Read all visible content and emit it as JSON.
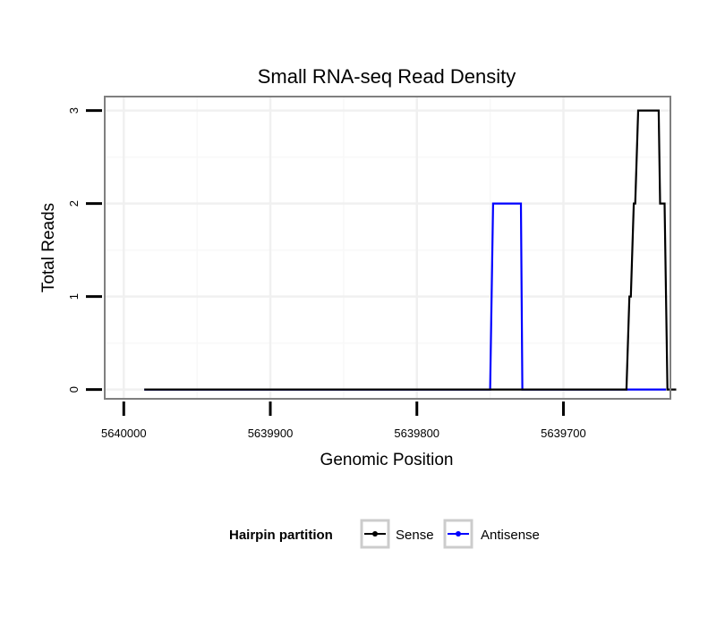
{
  "chart_data": {
    "type": "line",
    "title": "Small RNA-seq Read Density",
    "xlabel": "Genomic Position",
    "ylabel": "Total Reads",
    "x_reversed": true,
    "xlim": [
      5640013,
      5639627
    ],
    "ylim": [
      -0.1,
      3.15
    ],
    "x_ticks": [
      5640000,
      5639900,
      5639800,
      5639700
    ],
    "x_tick_labels": [
      "5640000",
      "5639900",
      "5639800",
      "5639700"
    ],
    "y_ticks": [
      0,
      1,
      2,
      3
    ],
    "y_tick_labels": [
      "0",
      "1",
      "2",
      "3"
    ],
    "grid": true,
    "legend": {
      "title": "Hairpin partition",
      "position": "bottom",
      "entries": [
        {
          "label": "Sense",
          "color": "#000000"
        },
        {
          "label": "Antisense",
          "color": "#0000ff"
        }
      ]
    },
    "series": [
      {
        "name": "Sense",
        "color": "#000000",
        "points": [
          [
            5639986,
            0
          ],
          [
            5639657,
            0
          ],
          [
            5639655,
            1
          ],
          [
            5639654,
            1
          ],
          [
            5639652,
            2
          ],
          [
            5639651,
            2
          ],
          [
            5639649,
            3
          ],
          [
            5639635,
            3
          ],
          [
            5639634,
            2
          ],
          [
            5639631,
            2
          ],
          [
            5639629,
            0
          ],
          [
            5639623,
            0
          ]
        ]
      },
      {
        "name": "Antisense",
        "color": "#0000ff",
        "points": [
          [
            5639986,
            0
          ],
          [
            5639750,
            0
          ],
          [
            5639748,
            2
          ],
          [
            5639729,
            2
          ],
          [
            5639728,
            0
          ],
          [
            5639656,
            0
          ],
          [
            5639630,
            0
          ]
        ]
      }
    ]
  }
}
